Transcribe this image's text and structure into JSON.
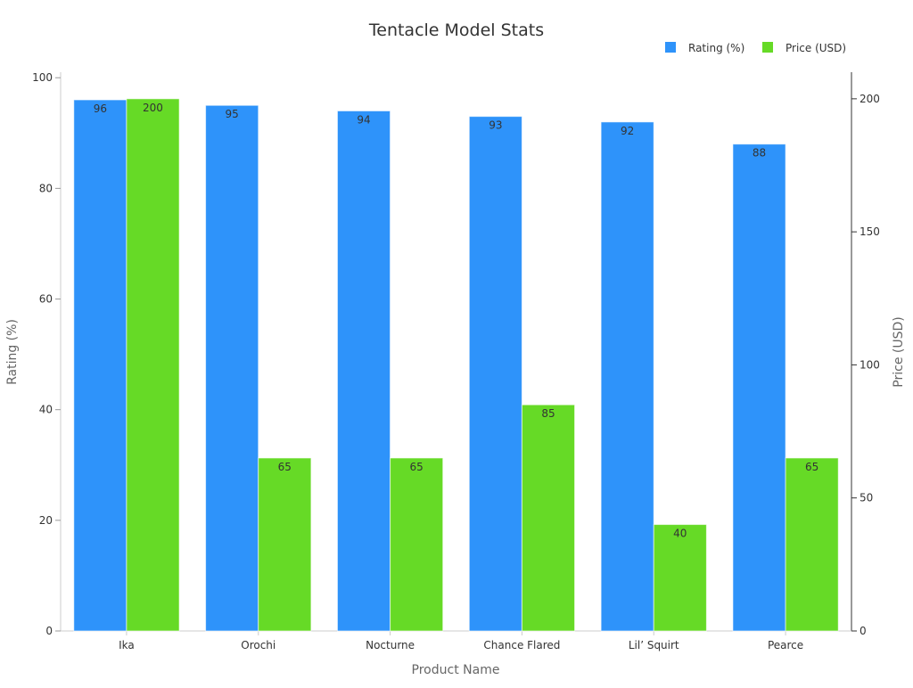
{
  "chart_data": {
    "type": "bar",
    "title": "Tentacle Model Stats",
    "xlabel": "Product Name",
    "ylabel": "Rating (%)",
    "y2label": "Price (USD)",
    "categories": [
      "Ika",
      "Orochi",
      "Nocturne",
      "Chance Flared",
      "Lil’ Squirt",
      "Pearce"
    ],
    "series": [
      {
        "name": "Rating (%)",
        "axis": "left",
        "color": "#2e93fa",
        "values": [
          96,
          95,
          94,
          93,
          92,
          88
        ]
      },
      {
        "name": "Price (USD)",
        "axis": "right",
        "color": "#66da26",
        "values": [
          200,
          65,
          65,
          85,
          40,
          65
        ]
      }
    ],
    "ylim": [
      0,
      101
    ],
    "y2lim": [
      0,
      210
    ],
    "yticks": [
      0,
      20,
      40,
      60,
      80,
      100
    ],
    "y2ticks": [
      0,
      50,
      100,
      150,
      200
    ],
    "legend": "top-right",
    "grid": false,
    "data_labels": true
  }
}
